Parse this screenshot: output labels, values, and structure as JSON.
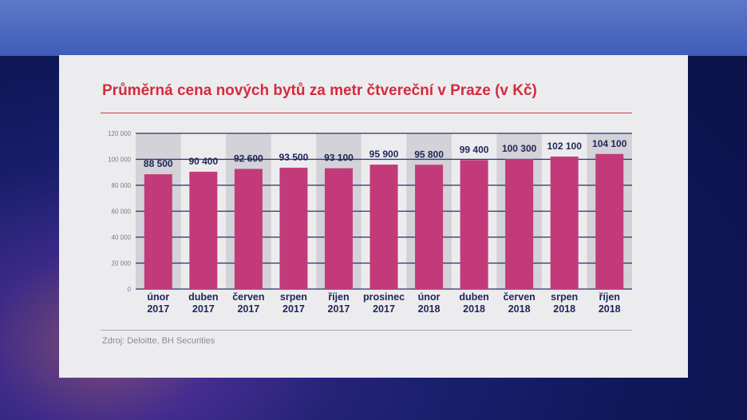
{
  "chart_data": {
    "type": "bar",
    "title": "Průměrná cena nových bytů za metr čtvereční v Praze (v Kč)",
    "categories": [
      [
        "únor",
        "2017"
      ],
      [
        "duben",
        "2017"
      ],
      [
        "červen",
        "2017"
      ],
      [
        "srpen",
        "2017"
      ],
      [
        "říjen",
        "2017"
      ],
      [
        "prosinec",
        "2017"
      ],
      [
        "únor",
        "2018"
      ],
      [
        "duben",
        "2018"
      ],
      [
        "červen",
        "2018"
      ],
      [
        "srpen",
        "2018"
      ],
      [
        "říjen",
        "2018"
      ]
    ],
    "values": [
      88500,
      90400,
      92600,
      93500,
      93100,
      95900,
      95800,
      99400,
      100300,
      102100,
      104100
    ],
    "value_labels": [
      "88 500",
      "90 400",
      "92 600",
      "93 500",
      "93 100",
      "95 900",
      "95 800",
      "99 400",
      "100 300",
      "102 100",
      "104 100"
    ],
    "ylim": [
      0,
      120000
    ],
    "yticks": [
      0,
      20000,
      40000,
      60000,
      80000,
      100000,
      120000
    ],
    "ytick_labels": [
      "0",
      "20 000",
      "40 000",
      "60 000",
      "80 000",
      "100 000",
      "120 000"
    ],
    "grid": true,
    "xlabel": "",
    "ylabel": "",
    "bar_color": "#c23a7a",
    "label_color": "#1f2557",
    "grid_color": "#2b2f66",
    "band_color": "#d2d2d8"
  },
  "source": "Zdroj: Deloitte, BH Securities"
}
